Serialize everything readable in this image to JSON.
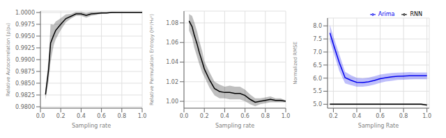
{
  "chart_data": [
    {
      "type": "line",
      "x_label": "Sampling rate",
      "y_label": "Relative Autocorrelation (ρ/ρ₀)",
      "xlim": [
        0.0,
        1.0
      ],
      "xticks": [
        {
          "value": 0,
          "label": "0.0"
        },
        0.2,
        0.4,
        0.6,
        0.8,
        {
          "value": 1,
          "label": "1.0"
        }
      ],
      "ylim": [
        0.9797,
        1.0003
      ],
      "yticks": [
        {
          "value": 0.98,
          "label": "0.9800"
        },
        0.9825,
        {
          "value": 0.985,
          "label": "0.9850"
        },
        0.9875,
        {
          "value": 0.99,
          "label": "0.9900"
        },
        0.9925,
        {
          "value": 0.995,
          "label": "0.9950"
        },
        0.9975,
        {
          "value": 1,
          "label": "1.0000"
        }
      ],
      "grid": true,
      "x": [
        0.05,
        0.08,
        0.1,
        0.13,
        0.15,
        0.18,
        0.2,
        0.25,
        0.3,
        0.35,
        0.4,
        0.45,
        0.5,
        0.55,
        0.6,
        0.65,
        0.7,
        0.75,
        0.8,
        0.85,
        0.9,
        0.95,
        1.0
      ],
      "series": [
        {
          "color": "#000000",
          "values": [
            0.9826,
            0.9878,
            0.9935,
            0.9952,
            0.9962,
            0.997,
            0.9975,
            0.9987,
            0.9992,
            0.9997,
            0.9997,
            0.9994,
            0.9997,
            0.9998,
            0.9999,
            0.9999,
            1.0,
            1.0,
            1.0,
            1.0,
            1.0,
            1.0,
            1.0
          ],
          "low": [
            0.9815,
            0.9855,
            0.9895,
            0.993,
            0.9943,
            0.9955,
            0.9963,
            0.9979,
            0.9987,
            0.9993,
            0.9993,
            0.9989,
            0.9993,
            0.9995,
            0.9997,
            0.9998,
            0.9999,
            1.0,
            1.0,
            1.0,
            1.0,
            1.0,
            1.0
          ],
          "high": [
            0.9837,
            0.9901,
            0.9975,
            0.9974,
            0.9981,
            0.9985,
            0.9988,
            0.9996,
            0.9997,
            1.0001,
            1.0001,
            0.9999,
            1.0001,
            1.0001,
            1.0001,
            1.0001,
            1.0001,
            1.0001,
            1.0001,
            1.0001,
            1.0001,
            1.0001,
            1.0001
          ]
        }
      ]
    },
    {
      "type": "line",
      "x_label": "Sampling rate",
      "y_label": "Relative Permutation Entropy (Hᵖ/H₀ᵖ)",
      "xlim": [
        0.0,
        1.0
      ],
      "xticks": [
        {
          "value": 0,
          "label": "0.0"
        },
        0.2,
        0.4,
        0.6,
        0.8,
        {
          "value": 1,
          "label": "1.0"
        }
      ],
      "ylim": [
        0.993,
        1.092
      ],
      "yticks": [
        {
          "value": 1,
          "label": "1.00"
        },
        1.02,
        1.04,
        1.06,
        1.08
      ],
      "grid": true,
      "x": [
        0.05,
        0.08,
        0.1,
        0.13,
        0.15,
        0.18,
        0.2,
        0.25,
        0.3,
        0.35,
        0.4,
        0.45,
        0.5,
        0.55,
        0.6,
        0.65,
        0.7,
        0.75,
        0.8,
        0.85,
        0.9,
        0.95,
        1.0
      ],
      "series": [
        {
          "color": "#000000",
          "values": [
            1.082,
            1.076,
            1.068,
            1.058,
            1.05,
            1.04,
            1.033,
            1.022,
            1.013,
            1.01,
            1.009,
            1.009,
            1.008,
            1.008,
            1.006,
            1.002,
            0.999,
            1.0,
            1.001,
            1.002,
            1.001,
            1.001,
            1.0
          ],
          "low": [
            1.072,
            1.065,
            1.055,
            1.045,
            1.038,
            1.029,
            1.025,
            1.014,
            1.006,
            1.003,
            1.003,
            1.002,
            1.002,
            1.002,
            1.0,
            0.997,
            0.995,
            0.997,
            0.998,
            0.999,
            0.999,
            0.999,
            0.999
          ],
          "high": [
            1.089,
            1.087,
            1.081,
            1.071,
            1.062,
            1.051,
            1.041,
            1.03,
            1.02,
            1.017,
            1.015,
            1.016,
            1.015,
            1.015,
            1.012,
            1.007,
            1.003,
            1.003,
            1.004,
            1.005,
            1.003,
            1.003,
            1.001
          ]
        }
      ]
    },
    {
      "type": "line",
      "x_label": "Sampling Rate",
      "y_label": "Normalized RMSE",
      "xlim": [
        0.15,
        1.02
      ],
      "xticks": [
        0.2,
        0.4,
        0.6,
        0.8,
        {
          "value": 1,
          "label": "1.0"
        }
      ],
      "ylim": [
        4.85,
        8.3
      ],
      "yticks": [
        {
          "value": 5,
          "label": "5.0"
        },
        5.5,
        {
          "value": 6,
          "label": "6.0"
        },
        6.5,
        {
          "value": 7,
          "label": "7.0"
        },
        7.5,
        {
          "value": 8,
          "label": "8.0"
        }
      ],
      "grid": true,
      "legend": "upper right",
      "x": [
        0.17,
        0.2,
        0.25,
        0.3,
        0.35,
        0.4,
        0.45,
        0.5,
        0.55,
        0.6,
        0.65,
        0.7,
        0.75,
        0.8,
        0.85,
        0.9,
        0.95,
        1.0
      ],
      "series": [
        {
          "name": "RNN",
          "color": "#000000",
          "values": [
            5.0,
            5.0,
            5.0,
            5.0,
            5.0,
            5.0,
            5.0,
            5.0,
            5.0,
            5.0,
            5.0,
            5.0,
            5.0,
            5.0,
            5.0,
            5.0,
            5.0,
            4.97
          ],
          "low": [
            4.97,
            4.97,
            4.97,
            4.97,
            4.97,
            4.97,
            4.97,
            4.97,
            4.97,
            4.97,
            4.97,
            4.97,
            4.97,
            4.97,
            4.97,
            4.97,
            4.97,
            4.94
          ],
          "high": [
            5.03,
            5.03,
            5.03,
            5.03,
            5.03,
            5.03,
            5.03,
            5.03,
            5.03,
            5.03,
            5.03,
            5.03,
            5.03,
            5.03,
            5.03,
            5.03,
            5.03,
            5.0
          ]
        },
        {
          "name": "Arima",
          "color": "#0000ee",
          "values": [
            7.73,
            7.3,
            6.6,
            6.02,
            5.92,
            5.84,
            5.83,
            5.86,
            5.91,
            5.98,
            6.02,
            6.05,
            6.07,
            6.08,
            6.09,
            6.09,
            6.09,
            6.09
          ],
          "low": [
            7.42,
            7.0,
            6.28,
            5.8,
            5.73,
            5.67,
            5.67,
            5.7,
            5.75,
            5.82,
            5.87,
            5.9,
            5.93,
            5.94,
            5.95,
            5.96,
            5.96,
            5.96
          ],
          "high": [
            8.04,
            7.6,
            6.92,
            6.24,
            6.11,
            6.01,
            5.99,
            6.02,
            6.07,
            6.14,
            6.17,
            6.2,
            6.21,
            6.22,
            6.23,
            6.22,
            6.22,
            6.22
          ]
        }
      ]
    }
  ]
}
